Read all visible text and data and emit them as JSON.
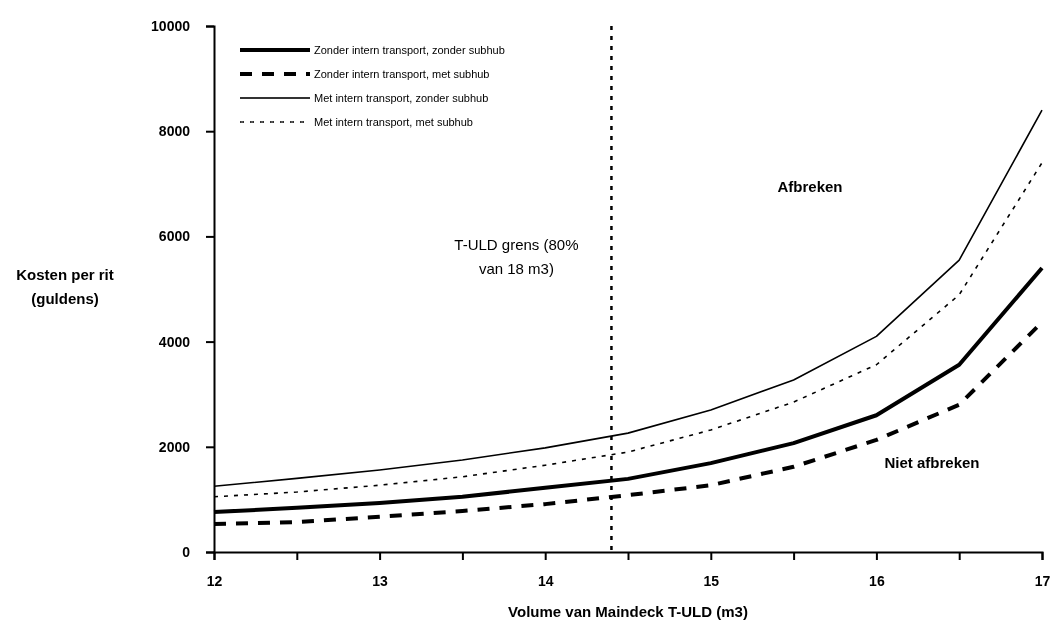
{
  "chart_data": {
    "type": "line",
    "xlabel": "Volume van Maindeck T-ULD (m3)",
    "ylabel": "Kosten per rit (guldens)",
    "x": [
      12,
      12.5,
      13,
      13.5,
      14,
      14.5,
      15,
      15.5,
      16,
      16.5,
      17
    ],
    "series": [
      {
        "name": "Zonder intern transport, zonder subhub",
        "color": "#000000",
        "line_style": "solid",
        "values": [
          760,
          840,
          930,
          1050,
          1220,
          1390,
          1690,
          2070,
          2600,
          3560,
          5400
        ]
      },
      {
        "name": "Zonder intern transport, met subhub",
        "color": "#000000",
        "line_style": "dashed",
        "values": [
          530,
          570,
          670,
          780,
          910,
          1080,
          1270,
          1620,
          2130,
          2800,
          4370
        ]
      },
      {
        "name": "Met intern transport, zonder subhub",
        "color": "#000000",
        "line_style": "solid",
        "values": [
          1250,
          1400,
          1560,
          1750,
          1980,
          2260,
          2700,
          3270,
          4100,
          5550,
          8400
        ]
      },
      {
        "name": "Met intern transport, met subhub",
        "color": "#000000",
        "line_style": "dotted",
        "values": [
          1050,
          1140,
          1270,
          1430,
          1650,
          1900,
          2320,
          2850,
          3560,
          4890,
          7400
        ]
      }
    ],
    "xlim": [
      12,
      17
    ],
    "ylim": [
      0,
      10000
    ],
    "xticks": [
      12,
      {
        "value": 12.5,
        "label": null
      },
      13,
      {
        "value": 13.5,
        "label": null
      },
      14,
      {
        "value": 14.5,
        "label": null
      },
      15,
      {
        "value": 15.5,
        "label": null
      },
      16,
      {
        "value": 16.5,
        "label": null
      },
      17
    ],
    "yticks": [
      0,
      2000,
      4000,
      6000,
      8000,
      10000
    ],
    "ref_lines": [
      {
        "axis": "x",
        "value": 14.4,
        "label": "T-ULD grens (80% van 18 m3)",
        "line_style": "dotted"
      }
    ],
    "annotations": [
      "Afbreken",
      "Niet afbreken"
    ],
    "grid": false,
    "legend": "top left",
    "marker": "none"
  }
}
